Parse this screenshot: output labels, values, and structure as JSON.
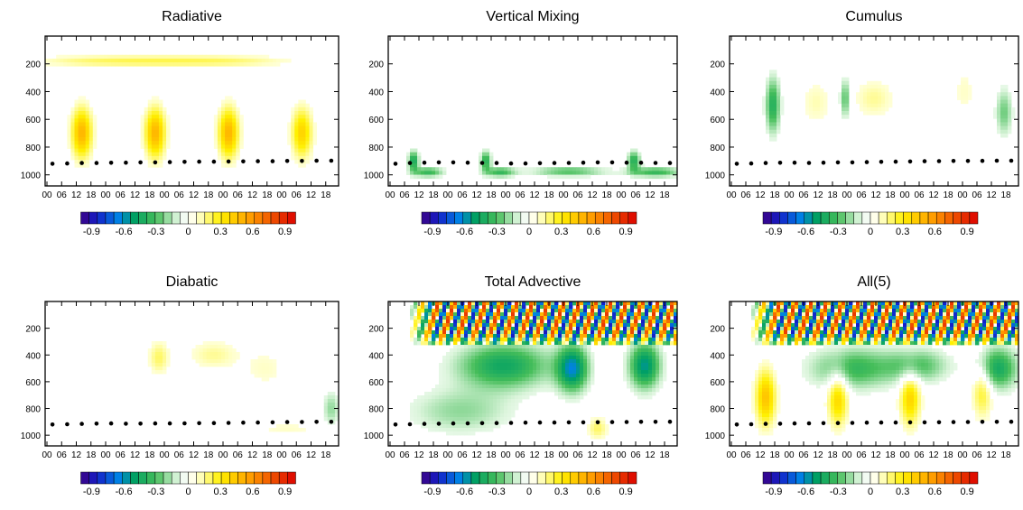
{
  "chart_data": [
    {
      "type": "heatmap",
      "title": "Radiative",
      "x_tick_labels": [
        "00",
        "06",
        "12",
        "18",
        "00",
        "06",
        "12",
        "18",
        "00",
        "06",
        "12",
        "18",
        "00",
        "06",
        "12",
        "18",
        "00",
        "06",
        "12",
        "18"
      ],
      "y_tick_labels": [
        "200",
        "400",
        "600",
        "800",
        "1000"
      ],
      "colorbar_ticks": [
        "-0.9",
        "-0.6",
        "-0.3",
        "0",
        "0.3",
        "0.6",
        "0.9"
      ],
      "colorbar_range": [
        -1.0,
        1.0
      ],
      "features": [
        {
          "x_day": 0.5,
          "x_sigma": 0.1,
          "p": 700,
          "p_sigma": 130,
          "value": 0.5
        },
        {
          "x_day": 1.5,
          "x_sigma": 0.1,
          "p": 700,
          "p_sigma": 130,
          "value": 0.5
        },
        {
          "x_day": 2.5,
          "x_sigma": 0.1,
          "p": 700,
          "p_sigma": 130,
          "value": 0.5
        },
        {
          "x_day": 3.5,
          "x_sigma": 0.1,
          "p": 700,
          "p_sigma": 130,
          "value": 0.4
        },
        {
          "x_day": 0.6,
          "x_sigma": 0.6,
          "p": 180,
          "p_sigma": 30,
          "value": 0.15
        },
        {
          "x_day": 1.6,
          "x_sigma": 0.6,
          "p": 180,
          "p_sigma": 30,
          "value": 0.15
        },
        {
          "x_day": 2.6,
          "x_sigma": 0.6,
          "p": 180,
          "p_sigma": 30,
          "value": 0.15
        }
      ],
      "boundary_layer_top_hPa": [
        920,
        918,
        915,
        915,
        913,
        912,
        910,
        910,
        908,
        906,
        905,
        905,
        904,
        903,
        902,
        902,
        900,
        900,
        898,
        898
      ]
    },
    {
      "type": "heatmap",
      "title": "Vertical Mixing",
      "x_tick_labels": [
        "00",
        "06",
        "12",
        "18",
        "00",
        "06",
        "12",
        "18",
        "00",
        "06",
        "12",
        "18",
        "00",
        "06",
        "12",
        "18",
        "00",
        "06",
        "12",
        "18"
      ],
      "y_tick_labels": [
        "200",
        "400",
        "600",
        "800",
        "1000"
      ],
      "colorbar_ticks": [
        "-0.9",
        "-0.6",
        "-0.3",
        "0",
        "0.3",
        "0.6",
        "0.9"
      ],
      "colorbar_range": [
        -1.0,
        1.0
      ],
      "features": [
        {
          "x_day": 0.35,
          "x_sigma": 0.05,
          "p": 900,
          "p_sigma": 50,
          "value": -0.45
        },
        {
          "x_day": 0.55,
          "x_sigma": 0.15,
          "p": 980,
          "p_sigma": 25,
          "value": -0.35
        },
        {
          "x_day": 1.35,
          "x_sigma": 0.05,
          "p": 900,
          "p_sigma": 50,
          "value": -0.4
        },
        {
          "x_day": 1.55,
          "x_sigma": 0.15,
          "p": 980,
          "p_sigma": 25,
          "value": -0.35
        },
        {
          "x_day": 2.5,
          "x_sigma": 0.35,
          "p": 975,
          "p_sigma": 25,
          "value": -0.3
        },
        {
          "x_day": 3.4,
          "x_sigma": 0.06,
          "p": 900,
          "p_sigma": 50,
          "value": -0.4
        },
        {
          "x_day": 3.7,
          "x_sigma": 0.25,
          "p": 980,
          "p_sigma": 25,
          "value": -0.35
        }
      ],
      "boundary_layer_top_hPa": [
        920,
        915,
        912,
        910,
        910,
        912,
        914,
        915,
        918,
        918,
        916,
        915,
        914,
        912,
        910,
        910,
        912,
        913,
        914,
        915
      ]
    },
    {
      "type": "heatmap",
      "title": "Cumulus",
      "x_tick_labels": [
        "00",
        "06",
        "12",
        "18",
        "00",
        "06",
        "12",
        "18",
        "00",
        "06",
        "12",
        "18",
        "00",
        "06",
        "12",
        "18",
        "00",
        "06",
        "12",
        "18"
      ],
      "y_tick_labels": [
        "200",
        "400",
        "600",
        "800",
        "1000"
      ],
      "colorbar_ticks": [
        "-0.9",
        "-0.6",
        "-0.3",
        "0",
        "0.3",
        "0.6",
        "0.9"
      ],
      "colorbar_range": [
        -1.0,
        1.0
      ],
      "features": [
        {
          "x_day": 0.6,
          "x_sigma": 0.07,
          "p": 500,
          "p_sigma": 140,
          "value": -0.4
        },
        {
          "x_day": 1.2,
          "x_sigma": 0.15,
          "p": 480,
          "p_sigma": 120,
          "value": 0.12
        },
        {
          "x_day": 1.6,
          "x_sigma": 0.05,
          "p": 450,
          "p_sigma": 100,
          "value": -0.3
        },
        {
          "x_day": 2.0,
          "x_sigma": 0.2,
          "p": 450,
          "p_sigma": 100,
          "value": 0.15
        },
        {
          "x_day": 3.25,
          "x_sigma": 0.1,
          "p": 400,
          "p_sigma": 120,
          "value": 0.1
        },
        {
          "x_day": 3.8,
          "x_sigma": 0.08,
          "p": 550,
          "p_sigma": 120,
          "value": -0.25
        }
      ],
      "boundary_layer_top_hPa": [
        920,
        918,
        915,
        913,
        912,
        914,
        912,
        910,
        910,
        908,
        906,
        905,
        904,
        902,
        901,
        900,
        900,
        899,
        898,
        898
      ]
    },
    {
      "type": "heatmap",
      "title": "Diabatic",
      "x_tick_labels": [
        "00",
        "06",
        "12",
        "18",
        "00",
        "06",
        "12",
        "18",
        "00",
        "06",
        "12",
        "18",
        "00",
        "06",
        "12",
        "18",
        "00",
        "06",
        "12",
        "18"
      ],
      "y_tick_labels": [
        "200",
        "400",
        "600",
        "800",
        "1000"
      ],
      "colorbar_ticks": [
        "-0.9",
        "-0.6",
        "-0.3",
        "0",
        "0.3",
        "0.6",
        "0.9"
      ],
      "colorbar_range": [
        -1.0,
        1.0
      ],
      "features": [
        {
          "x_day": 1.55,
          "x_sigma": 0.1,
          "p": 420,
          "p_sigma": 90,
          "value": 0.2
        },
        {
          "x_day": 2.3,
          "x_sigma": 0.25,
          "p": 400,
          "p_sigma": 80,
          "value": 0.15
        },
        {
          "x_day": 3.0,
          "x_sigma": 0.2,
          "p": 500,
          "p_sigma": 100,
          "value": 0.1
        },
        {
          "x_day": 3.9,
          "x_sigma": 0.08,
          "p": 800,
          "p_sigma": 90,
          "value": -0.2
        },
        {
          "x_day": 3.3,
          "x_sigma": 0.3,
          "p": 950,
          "p_sigma": 30,
          "value": 0.1
        }
      ],
      "boundary_layer_top_hPa": [
        920,
        918,
        915,
        913,
        912,
        914,
        913,
        912,
        912,
        911,
        910,
        909,
        908,
        906,
        905,
        904,
        902,
        901,
        900,
        900
      ]
    },
    {
      "type": "heatmap",
      "title": "Total Advective",
      "x_tick_labels": [
        "00",
        "06",
        "12",
        "18",
        "00",
        "06",
        "12",
        "18",
        "00",
        "06",
        "12",
        "18",
        "00",
        "06",
        "12",
        "18",
        "00",
        "06",
        "12",
        "18"
      ],
      "y_tick_labels": [
        "200",
        "400",
        "600",
        "800",
        "1000"
      ],
      "colorbar_ticks": [
        "-0.9",
        "-0.6",
        "-0.3",
        "0",
        "0.3",
        "0.6",
        "0.9"
      ],
      "colorbar_range": [
        -1.0,
        1.0
      ],
      "features": [
        {
          "x_day": 1.6,
          "x_sigma": 0.45,
          "p": 480,
          "p_sigma": 120,
          "value": -0.45
        },
        {
          "x_day": 2.55,
          "x_sigma": 0.15,
          "p": 500,
          "p_sigma": 120,
          "value": -0.6
        },
        {
          "x_day": 3.55,
          "x_sigma": 0.15,
          "p": 480,
          "p_sigma": 120,
          "value": -0.55
        },
        {
          "x_day": 1.0,
          "x_sigma": 0.5,
          "p": 820,
          "p_sigma": 120,
          "value": -0.2
        },
        {
          "x_day": 2.9,
          "x_sigma": 0.1,
          "p": 950,
          "p_sigma": 60,
          "value": 0.2
        }
      ],
      "upper_wave": {
        "p_max": 330,
        "amplitude": 0.85,
        "wavelength_days": 0.65
      },
      "boundary_layer_top_hPa": [
        920,
        918,
        915,
        914,
        912,
        911,
        910,
        909,
        908,
        906,
        905,
        905,
        904,
        904,
        903,
        902,
        901,
        900,
        900,
        899
      ]
    },
    {
      "type": "heatmap",
      "title": "All(5)",
      "x_tick_labels": [
        "00",
        "06",
        "12",
        "18",
        "00",
        "06",
        "12",
        "18",
        "00",
        "06",
        "12",
        "18",
        "00",
        "06",
        "12",
        "18",
        "00",
        "06",
        "12",
        "18"
      ],
      "y_tick_labels": [
        "200",
        "400",
        "600",
        "800",
        "1000"
      ],
      "colorbar_ticks": [
        "-0.9",
        "-0.6",
        "-0.3",
        "0",
        "0.3",
        "0.6",
        "0.9"
      ],
      "colorbar_range": [
        -1.0,
        1.0
      ],
      "features": [
        {
          "x_day": 0.5,
          "x_sigma": 0.1,
          "p": 720,
          "p_sigma": 150,
          "value": 0.45
        },
        {
          "x_day": 1.5,
          "x_sigma": 0.1,
          "p": 720,
          "p_sigma": 150,
          "value": 0.4
        },
        {
          "x_day": 2.5,
          "x_sigma": 0.1,
          "p": 720,
          "p_sigma": 150,
          "value": 0.4
        },
        {
          "x_day": 3.5,
          "x_sigma": 0.1,
          "p": 650,
          "p_sigma": 150,
          "value": 0.3
        },
        {
          "x_day": 1.7,
          "x_sigma": 0.4,
          "p": 500,
          "p_sigma": 110,
          "value": -0.35
        },
        {
          "x_day": 3.7,
          "x_sigma": 0.2,
          "p": 500,
          "p_sigma": 110,
          "value": -0.45
        },
        {
          "x_day": 2.6,
          "x_sigma": 0.3,
          "p": 480,
          "p_sigma": 90,
          "value": -0.3
        }
      ],
      "upper_wave": {
        "p_max": 330,
        "amplitude": 0.85,
        "wavelength_days": 0.65
      },
      "boundary_layer_top_hPa": [
        920,
        918,
        915,
        914,
        912,
        911,
        910,
        909,
        908,
        906,
        905,
        905,
        904,
        904,
        903,
        902,
        901,
        900,
        900,
        899
      ]
    }
  ]
}
